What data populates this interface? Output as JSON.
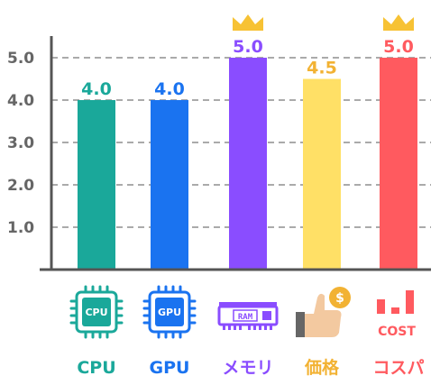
{
  "chart_data": {
    "type": "bar",
    "categories": [
      "CPU",
      "GPU",
      "メモリ",
      "価格",
      "コスパ"
    ],
    "values": [
      4.0,
      4.0,
      5.0,
      4.5,
      5.0
    ],
    "value_labels": [
      "4.0",
      "4.0",
      "5.0",
      "4.5",
      "5.0"
    ],
    "colors": [
      "#1aa89a",
      "#1a73f0",
      "#8a4dff",
      "#ffe066",
      "#ff5a5f"
    ],
    "label_colors": [
      "#1aa89a",
      "#1a73f0",
      "#8a4dff",
      "#f2b233",
      "#ff5a5f"
    ],
    "crowned": [
      false,
      false,
      true,
      false,
      true
    ],
    "yticks": [
      "1.0",
      "2.0",
      "3.0",
      "4.0",
      "5.0"
    ],
    "ylim": [
      0,
      5.5
    ],
    "grid": true,
    "title": "",
    "xlabel": "",
    "ylabel": ""
  },
  "icons": {
    "cpu": {
      "name": "cpu-chip-icon",
      "text": "CPU"
    },
    "gpu": {
      "name": "gpu-chip-icon",
      "text": "GPU"
    },
    "ram": {
      "name": "ram-module-icon",
      "text": "RAM"
    },
    "price": {
      "name": "thumbs-up-coin-icon",
      "text": "$"
    },
    "cost": {
      "name": "cost-bar-chart-icon",
      "text": "COST"
    }
  },
  "crown_color": "#f7c234"
}
